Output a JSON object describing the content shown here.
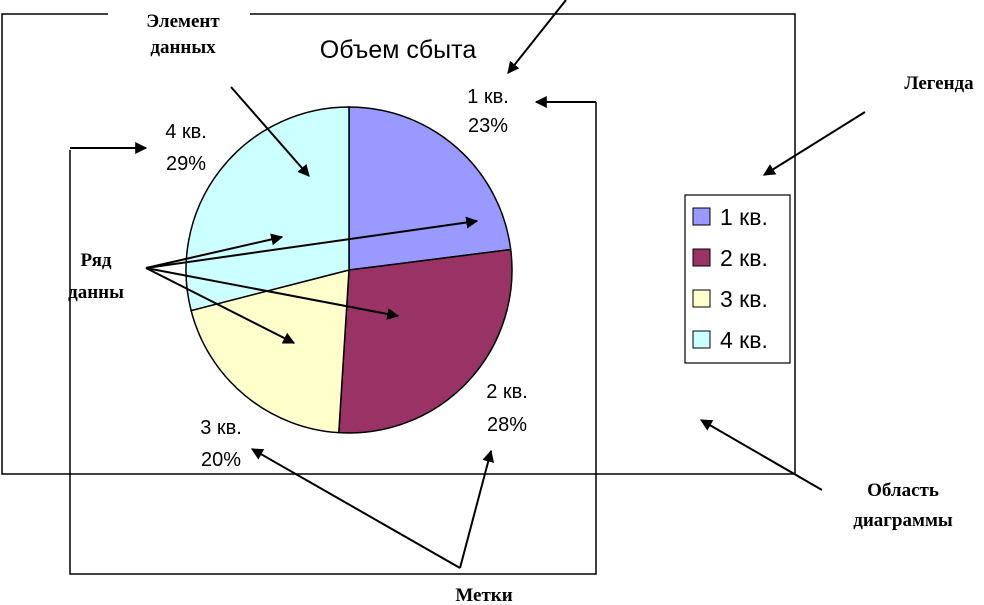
{
  "chart_data": {
    "type": "pie",
    "title": "Объем сбыта",
    "categories": [
      "1 кв.",
      "2 кв.",
      "3 кв.",
      "4 кв."
    ],
    "values": [
      23,
      28,
      20,
      29
    ],
    "data_labels": [
      {
        "category": "1 кв.",
        "percent": "23%"
      },
      {
        "category": "2 кв.",
        "percent": "28%"
      },
      {
        "category": "3 кв.",
        "percent": "20%"
      },
      {
        "category": "4 кв.",
        "percent": "29%"
      }
    ],
    "colors": [
      "#9999ff",
      "#993366",
      "#ffffcc",
      "#ccffff"
    ],
    "legend": {
      "placement": "right",
      "entries": [
        "1 кв.",
        "2 кв.",
        "3 кв.",
        "4 кв."
      ]
    }
  },
  "annotations": {
    "data_element": "Элемент данных",
    "data_element_line1": "Элемент",
    "data_element_line2": "данных",
    "data_series_line1": "Ряд",
    "data_series_line2": "данны",
    "legend": "Легенда",
    "chart_area_line1": "Область",
    "chart_area_line2": "диаграммы",
    "labels": "Метки"
  }
}
